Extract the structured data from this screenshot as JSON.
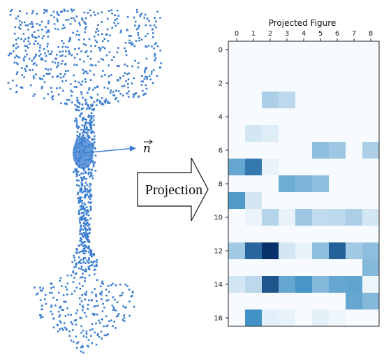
{
  "point_cloud": {
    "point_color": "#3a7dcf",
    "highlight_color": "#3a7dcf"
  },
  "normal_vector": {
    "label": "n"
  },
  "arrow": {
    "label": "Projection"
  },
  "chart_data": {
    "type": "heatmap",
    "title": "Projected Figure",
    "xlabel": "",
    "ylabel": "",
    "x_ticks": [
      0,
      1,
      2,
      3,
      4,
      5,
      6,
      7,
      8
    ],
    "y_ticks": [
      0,
      2,
      4,
      6,
      8,
      10,
      12,
      14,
      16
    ],
    "n_cols": 9,
    "n_rows": 17,
    "colormap": "Blues",
    "values": [
      [
        0,
        0,
        0,
        0,
        0,
        0,
        0,
        0,
        0
      ],
      [
        0,
        0,
        0,
        0,
        0,
        0,
        0,
        0,
        0
      ],
      [
        0,
        0,
        0,
        0,
        0,
        0,
        0,
        0,
        0
      ],
      [
        0,
        0,
        0.25,
        0.2,
        0,
        0,
        0,
        0,
        0
      ],
      [
        0,
        0,
        0,
        0,
        0,
        0,
        0,
        0,
        0
      ],
      [
        0,
        0.12,
        0.08,
        0,
        0,
        0,
        0,
        0,
        0
      ],
      [
        0,
        0,
        0,
        0,
        0,
        0.35,
        0.3,
        0,
        0.25
      ],
      [
        0.48,
        0.7,
        0.05,
        0,
        0,
        0,
        0,
        0,
        0
      ],
      [
        0,
        0,
        0,
        0.45,
        0.4,
        0.35,
        0,
        0,
        0
      ],
      [
        0.55,
        0.12,
        0,
        0,
        0,
        0,
        0,
        0,
        0
      ],
      [
        0,
        0.04,
        0.22,
        0.05,
        0.3,
        0.18,
        0.2,
        0.25,
        0.12
      ],
      [
        0,
        0,
        0,
        0,
        0,
        0,
        0,
        0,
        0
      ],
      [
        0.28,
        0.78,
        1.0,
        0.12,
        0.05,
        0.35,
        0.8,
        0.28,
        0.35
      ],
      [
        0,
        0,
        0,
        0,
        0,
        0,
        0,
        0,
        0.38
      ],
      [
        0.12,
        0.2,
        0.85,
        0.48,
        0.58,
        0.38,
        0.48,
        0.5,
        0.03
      ],
      [
        0,
        0,
        0,
        0,
        0,
        0,
        0,
        0.48,
        0.38
      ],
      [
        0,
        0.6,
        0.07,
        0.05,
        0,
        0.06,
        0.03,
        0,
        0
      ]
    ]
  }
}
